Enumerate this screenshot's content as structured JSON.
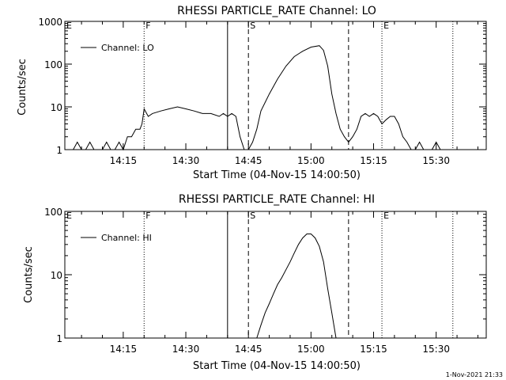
{
  "footer_text": "1-Nov-2021 21:33",
  "chart_data": [
    {
      "type": "line",
      "title": "RHESSI PARTICLE_RATE Channel: LO",
      "xlabel": "Start Time (04-Nov-15 14:00:50)",
      "ylabel": "Counts/sec",
      "y_scale": "log",
      "ylim": [
        1,
        1000
      ],
      "y_ticks": [
        {
          "value": 1,
          "label": "1"
        },
        {
          "value": 10,
          "label": "10"
        },
        {
          "value": 100,
          "label": "100"
        },
        {
          "value": 1000,
          "label": "1000"
        }
      ],
      "xlim": [
        "14:01",
        "15:42"
      ],
      "x_ticks": [
        "14:15",
        "14:30",
        "14:45",
        "15:00",
        "15:15",
        "15:30"
      ],
      "grid": false,
      "legend": {
        "position": "top-left",
        "entries": [
          "Channel: LO"
        ]
      },
      "vertical_markers": [
        {
          "time": "14:01",
          "style": "dotted",
          "label": "E"
        },
        {
          "time": "14:20",
          "style": "dotted",
          "label": "F"
        },
        {
          "time": "14:40",
          "style": "solid",
          "label": ""
        },
        {
          "time": "14:45",
          "style": "dashed",
          "label": "S"
        },
        {
          "time": "15:09",
          "style": "dashed",
          "label": ""
        },
        {
          "time": "15:17",
          "style": "dotted",
          "label": "E"
        },
        {
          "time": "15:34",
          "style": "dotted",
          "label": ""
        }
      ],
      "series": [
        {
          "name": "Channel: LO",
          "x": [
            "14:03",
            "14:04",
            "14:05",
            "14:06",
            "14:07",
            "14:08",
            "14:09",
            "14:10",
            "14:11",
            "14:12",
            "14:13",
            "14:14",
            "14:15",
            "14:16",
            "14:17",
            "14:18",
            "14:19",
            "14:19.5",
            "14:20",
            "14:21",
            "14:22",
            "14:24",
            "14:26",
            "14:28",
            "14:30",
            "14:32",
            "14:34",
            "14:36",
            "14:38",
            "14:39",
            "14:40",
            "14:41",
            "14:42",
            "14:43",
            "14:44",
            "14:45",
            "14:46",
            "14:47",
            "14:48",
            "14:50",
            "14:52",
            "14:54",
            "14:56",
            "14:58",
            "15:00",
            "15:02",
            "15:03",
            "15:04",
            "15:05",
            "15:06",
            "15:07",
            "15:08",
            "15:09",
            "15:10",
            "15:11",
            "15:12",
            "15:13",
            "15:14",
            "15:15",
            "15:16",
            "15:17",
            "15:18",
            "15:19",
            "15:20",
            "15:21",
            "15:22",
            "15:23",
            "15:24",
            "15:25",
            "15:26",
            "15:27",
            "15:28",
            "15:29",
            "15:30",
            "15:31",
            "15:32",
            "15:33"
          ],
          "y": [
            1,
            1.5,
            1,
            1,
            1.5,
            1,
            1,
            1,
            1.5,
            1,
            1,
            1.5,
            1,
            2,
            2,
            3,
            3,
            4,
            9,
            6,
            7,
            8,
            9,
            10,
            9,
            8,
            7,
            7,
            6,
            7,
            6,
            7,
            6,
            2,
            1,
            1,
            1.5,
            3,
            8,
            20,
            45,
            90,
            150,
            200,
            250,
            270,
            210,
            90,
            20,
            7,
            3,
            2,
            1.5,
            2,
            3,
            6,
            7,
            6,
            7,
            6,
            4,
            5,
            6,
            6,
            4,
            2,
            1.5,
            1,
            1,
            1.5,
            1,
            1,
            1,
            1.5,
            1,
            1,
            1
          ]
        }
      ]
    },
    {
      "type": "line",
      "title": "RHESSI PARTICLE_RATE Channel: HI",
      "xlabel": "Start Time (04-Nov-15 14:00:50)",
      "ylabel": "Counts/sec",
      "y_scale": "log",
      "ylim": [
        1,
        100
      ],
      "y_ticks": [
        {
          "value": 1,
          "label": "1"
        },
        {
          "value": 10,
          "label": "10"
        },
        {
          "value": 100,
          "label": "100"
        }
      ],
      "xlim": [
        "14:01",
        "15:42"
      ],
      "x_ticks": [
        "14:15",
        "14:30",
        "14:45",
        "15:00",
        "15:15",
        "15:30"
      ],
      "grid": false,
      "legend": {
        "position": "top-left",
        "entries": [
          "Channel: HI"
        ]
      },
      "vertical_markers": [
        {
          "time": "14:01",
          "style": "dotted",
          "label": "E"
        },
        {
          "time": "14:20",
          "style": "dotted",
          "label": "F"
        },
        {
          "time": "14:40",
          "style": "solid",
          "label": ""
        },
        {
          "time": "14:45",
          "style": "dashed",
          "label": "S"
        },
        {
          "time": "15:09",
          "style": "dashed",
          "label": ""
        },
        {
          "time": "15:17",
          "style": "dotted",
          "label": "E"
        },
        {
          "time": "15:34",
          "style": "dotted",
          "label": ""
        }
      ],
      "series": [
        {
          "name": "Channel: HI",
          "x": [
            "14:47",
            "14:48",
            "14:49",
            "14:50",
            "14:51",
            "14:52",
            "14:53",
            "14:54",
            "14:55",
            "14:56",
            "14:57",
            "14:58",
            "14:59",
            "15:00",
            "15:01",
            "15:02",
            "15:03",
            "15:04",
            "15:05",
            "15:06"
          ],
          "y": [
            1,
            1.6,
            2.5,
            3.5,
            5,
            7,
            9,
            12,
            16,
            22,
            30,
            38,
            44,
            44,
            38,
            28,
            16,
            6,
            2.5,
            1
          ]
        }
      ]
    }
  ]
}
